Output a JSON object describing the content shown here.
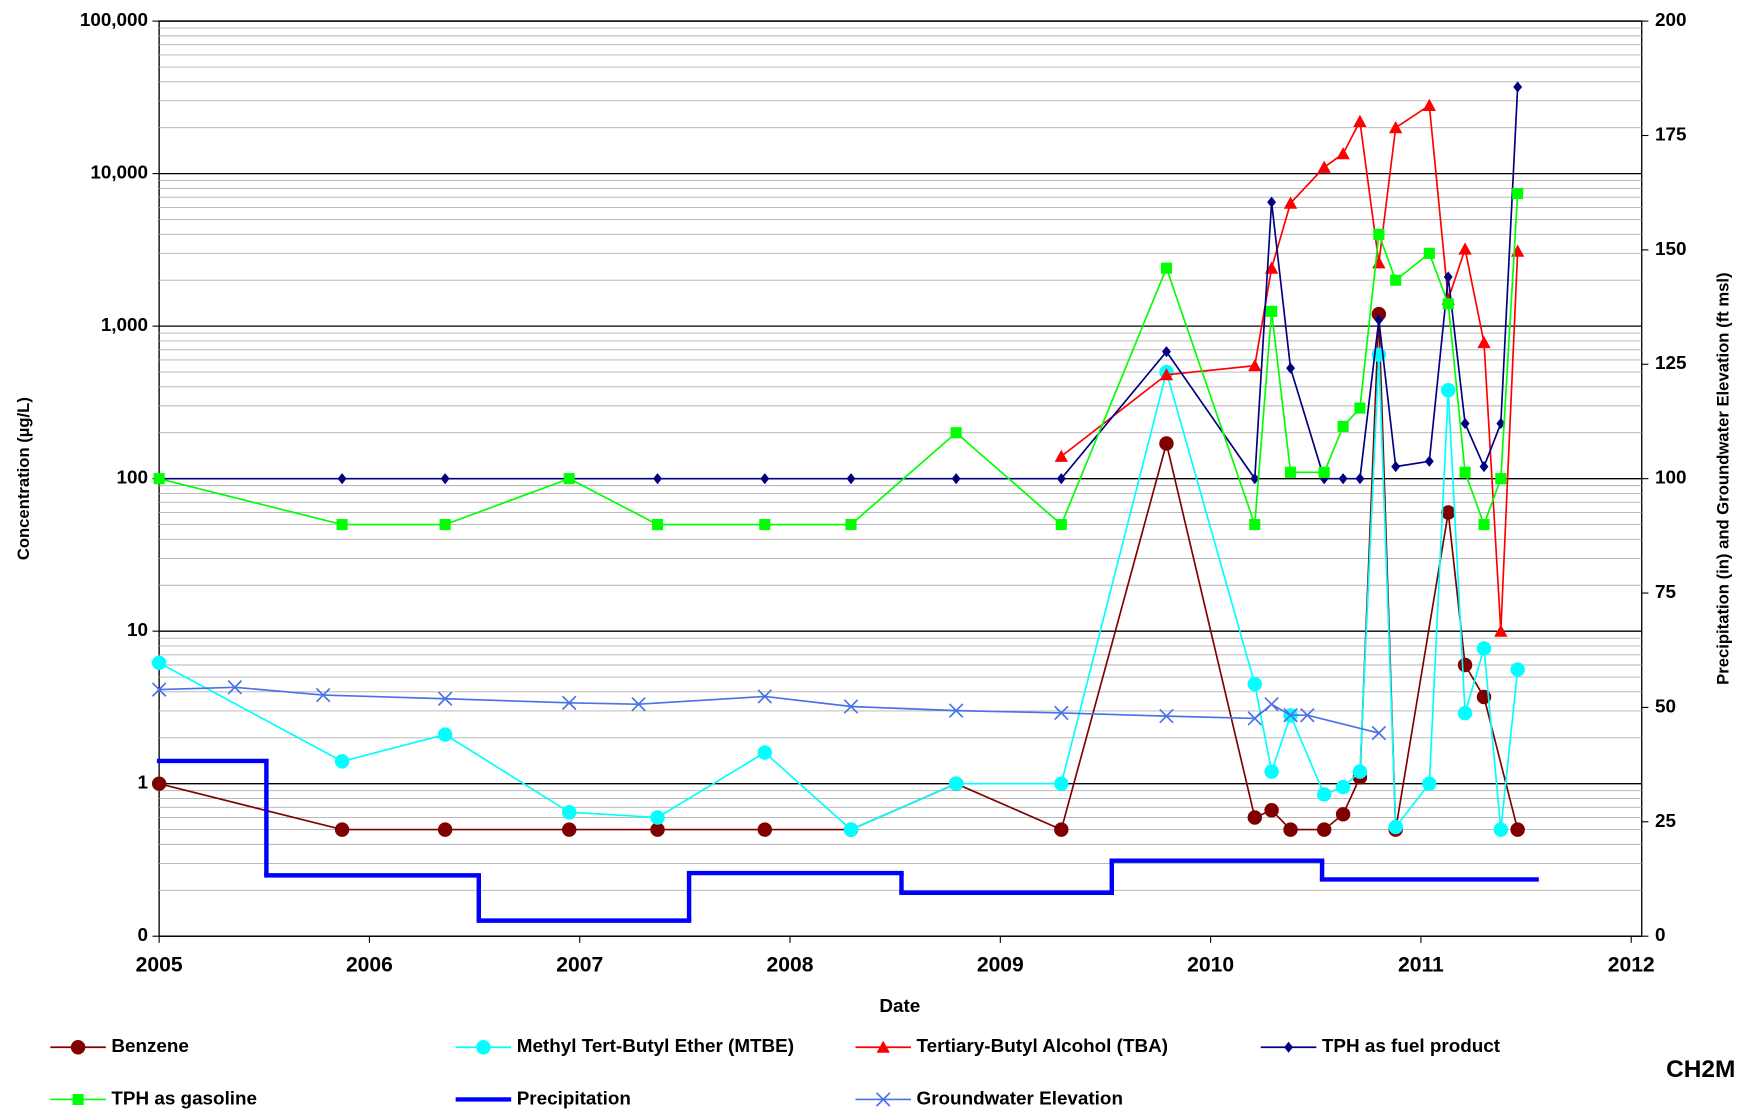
{
  "chart_data": {
    "type": "line",
    "xlabel": "Date",
    "ylabel": "Concentration (µg/L)",
    "y2label": "Precipitation (in) and Groundwater Elevation (ft msl)",
    "logo": "CH2M",
    "xlim": [
      2005,
      2012.05
    ],
    "xticks": [
      2005,
      2006,
      2007,
      2008,
      2009,
      2010,
      2011,
      2012
    ],
    "ylim": [
      0.1,
      100000
    ],
    "yscale": "log",
    "yticks": [
      {
        "value": 0.1,
        "label": "0"
      },
      1,
      10,
      100,
      {
        "value": 1000,
        "label": "1,000"
      },
      {
        "value": 10000,
        "label": "10,000"
      },
      {
        "value": 100000,
        "label": "100,000"
      }
    ],
    "y2lim": [
      0,
      200
    ],
    "y2ticks": [
      0,
      25,
      50,
      75,
      100,
      125,
      150,
      175,
      200
    ],
    "grid": true,
    "series": [
      {
        "name": "Benzene",
        "color": "#800000",
        "marker": "circle",
        "x": [
          2005.0,
          2005.87,
          2006.36,
          2006.95,
          2007.37,
          2007.88,
          2008.29,
          2008.79,
          2009.29,
          2009.79,
          2010.21,
          2010.29,
          2010.38,
          2010.54,
          2010.63,
          2010.71,
          2010.8,
          2010.88,
          2011.13,
          2011.21,
          2011.3,
          2011.46
        ],
        "values": [
          1,
          0.5,
          0.5,
          0.5,
          0.5,
          0.5,
          0.5,
          1,
          0.5,
          170,
          0.6,
          0.67,
          0.5,
          0.5,
          0.63,
          1.1,
          1200,
          0.5,
          60,
          6,
          3.7,
          0.5
        ]
      },
      {
        "name": "Methyl Tert-Butyl Ether (MTBE)",
        "color": "#00FFFF",
        "marker": "circle",
        "x": [
          2005.0,
          2005.87,
          2006.36,
          2006.95,
          2007.37,
          2007.88,
          2008.29,
          2008.79,
          2009.29,
          2009.79,
          2010.21,
          2010.29,
          2010.38,
          2010.54,
          2010.63,
          2010.71,
          2010.8,
          2010.88,
          2011.04,
          2011.13,
          2011.21,
          2011.3,
          2011.38,
          2011.46
        ],
        "values": [
          6.2,
          1.4,
          2.1,
          0.65,
          0.6,
          1.6,
          0.5,
          1,
          1,
          500,
          4.5,
          1.2,
          2.8,
          0.85,
          0.95,
          1.2,
          650,
          0.52,
          1,
          380,
          2.9,
          7.7,
          0.5,
          5.6
        ]
      },
      {
        "name": "Tertiary-Butyl Alcohol (TBA)",
        "color": "#FF0000",
        "marker": "triangle",
        "x": [
          2009.29,
          2009.79,
          2010.21,
          2010.29,
          2010.38,
          2010.54,
          2010.63,
          2010.71,
          2010.8,
          2010.88,
          2011.04,
          2011.13,
          2011.21,
          2011.3,
          2011.38,
          2011.46
        ],
        "values": [
          140,
          480,
          550,
          2400,
          6400,
          11000,
          13500,
          22000,
          2600,
          20000,
          28000,
          1500,
          3200,
          780,
          10,
          3100
        ]
      },
      {
        "name": "TPH as fuel product",
        "color": "#000080",
        "marker": "diamond",
        "x": [
          2005.0,
          2005.87,
          2006.36,
          2006.95,
          2007.37,
          2007.88,
          2008.29,
          2008.79,
          2009.29,
          2009.79,
          2010.21,
          2010.29,
          2010.38,
          2010.54,
          2010.63,
          2010.71,
          2010.8,
          2010.88,
          2011.04,
          2011.13,
          2011.21,
          2011.3,
          2011.38,
          2011.46
        ],
        "values": [
          100,
          100,
          100,
          100,
          100,
          100,
          100,
          100,
          100,
          680,
          100,
          6500,
          530,
          100,
          100,
          100,
          1100,
          120,
          130,
          2100,
          230,
          120,
          230,
          37000
        ]
      },
      {
        "name": "TPH as gasoline",
        "color": "#00FF00",
        "marker": "square",
        "x": [
          2005.0,
          2005.87,
          2006.36,
          2006.95,
          2007.37,
          2007.88,
          2008.29,
          2008.79,
          2009.29,
          2009.79,
          2010.21,
          2010.29,
          2010.38,
          2010.54,
          2010.63,
          2010.71,
          2010.8,
          2010.88,
          2011.04,
          2011.13,
          2011.21,
          2011.3,
          2011.38,
          2011.46
        ],
        "values": [
          100,
          50,
          50,
          100,
          50,
          50,
          50,
          200,
          50,
          2400,
          50,
          1250,
          110,
          110,
          220,
          290,
          4000,
          2000,
          3000,
          1400,
          110,
          50,
          100,
          7400
        ]
      },
      {
        "name": "Precipitation",
        "color": "#0000FF",
        "marker": "step",
        "axis": "y2",
        "bins": [
          2005.0,
          2005.51,
          2006.52,
          2007.52,
          2008.53,
          2009.53,
          2010.53,
          2011.55
        ],
        "values": [
          38.3,
          13.3,
          3.4,
          13.8,
          9.5,
          16.5,
          12.4
        ]
      },
      {
        "name": "Groundwater Elevation",
        "color": "#4A72E8",
        "marker": "x",
        "axis": "y2",
        "x": [
          2005.0,
          2005.36,
          2005.78,
          2006.36,
          2006.95,
          2007.28,
          2007.88,
          2008.29,
          2008.79,
          2009.29,
          2009.79,
          2010.21,
          2010.29,
          2010.38,
          2010.46,
          2010.8
        ],
        "values": [
          53.9,
          54.4,
          52.7,
          51.9,
          51.0,
          50.7,
          52.4,
          50.2,
          49.3,
          48.8,
          48.1,
          47.6,
          50.7,
          48.3,
          48.3,
          44.4
        ]
      }
    ]
  }
}
